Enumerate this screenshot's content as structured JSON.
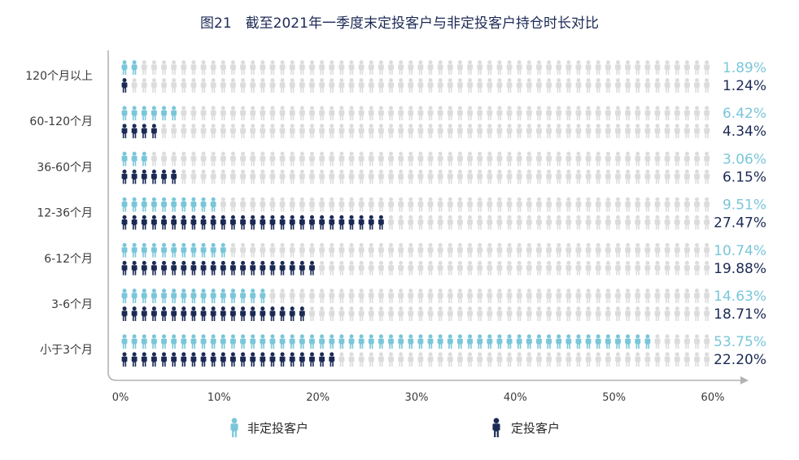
{
  "title": "图21　截至2021年一季度末定投客户与非定投客户持仓时长对比",
  "colors": {
    "non_sip": "#79c6d9",
    "sip": "#1b2a55",
    "empty": "#dcdcdc",
    "axis": "#b3b3b3"
  },
  "legend": {
    "non_sip": "非定投客户",
    "sip": "定投客户"
  },
  "chart_data": {
    "type": "bar",
    "title": "图21　截至2021年一季度末定投客户与非定投客户持仓时长对比",
    "xlim": [
      0,
      60
    ],
    "x_ticks": [
      "0%",
      "10%",
      "20%",
      "30%",
      "40%",
      "50%",
      "60%"
    ],
    "categories": [
      "120个月以上",
      "60-120个月",
      "36-60个月",
      "12-36个月",
      "6-12个月",
      "3-6个月",
      "小于3个月"
    ],
    "series": [
      {
        "name": "非定投客户",
        "values": [
          1.89,
          6.42,
          3.06,
          9.51,
          10.74,
          14.63,
          53.75
        ],
        "labels": [
          "1.89%",
          "6.42%",
          "3.06%",
          "9.51%",
          "10.74%",
          "14.63%",
          "53.75%"
        ]
      },
      {
        "name": "定投客户",
        "values": [
          1.24,
          4.34,
          6.15,
          27.47,
          19.88,
          18.71,
          22.2
        ],
        "labels": [
          "1.24%",
          "4.34%",
          "6.15%",
          "27.47%",
          "19.88%",
          "18.71%",
          "22.20%"
        ]
      }
    ],
    "legend_position": "bottom"
  }
}
